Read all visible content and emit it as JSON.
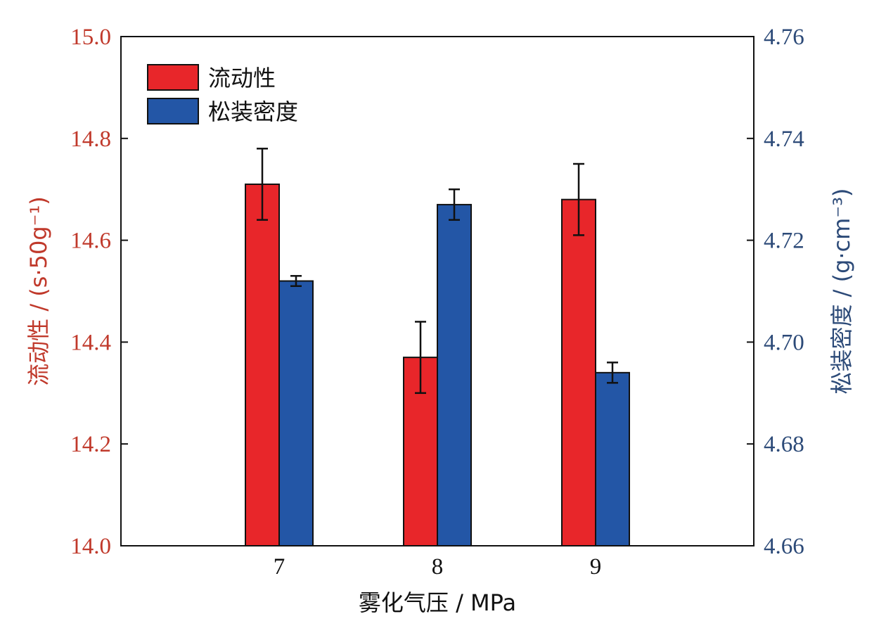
{
  "chart_data": {
    "type": "bar",
    "categories": [
      "7",
      "8",
      "9"
    ],
    "xlabel": "雾化气压 / MPa",
    "series": [
      {
        "name": "流动性",
        "axis": "left",
        "color": "#e8262a",
        "values": [
          14.71,
          14.37,
          14.68
        ],
        "errors": [
          0.07,
          0.07,
          0.07
        ]
      },
      {
        "name": "松装密度",
        "axis": "right",
        "color": "#2356a6",
        "values": [
          4.712,
          4.727,
          4.694
        ],
        "errors": [
          0.001,
          0.003,
          0.002
        ]
      }
    ],
    "y_left": {
      "label": "流动性 / (s·50g⁻¹)",
      "ylim": [
        14.0,
        15.0
      ],
      "ticks": [
        "14.0",
        "14.2",
        "14.4",
        "14.6",
        "14.8",
        "15.0"
      ],
      "color": "#c0392b"
    },
    "y_right": {
      "label": "松装密度 / (g·cm⁻³)",
      "ylim": [
        4.66,
        4.76
      ],
      "ticks": [
        "4.66",
        "4.68",
        "4.70",
        "4.72",
        "4.74",
        "4.76"
      ],
      "color": "#2c4a78"
    },
    "legend_position": "top-left",
    "grid": false
  }
}
